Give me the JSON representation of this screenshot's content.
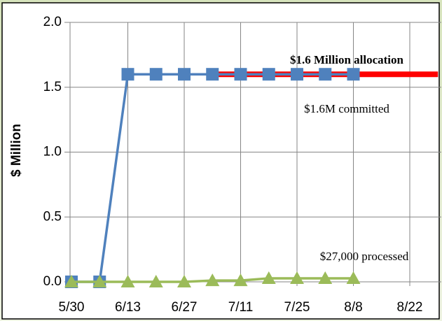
{
  "chart_data": {
    "type": "line",
    "y_label": "$ Million",
    "categories": [
      "5/30",
      null,
      "6/13",
      null,
      "6/27",
      null,
      "7/11",
      null,
      "7/25",
      null,
      "8/8",
      null,
      "8/22",
      null
    ],
    "series": [
      {
        "name": "$1.6 Million allocation",
        "color": "#ff0000",
        "marker": "none",
        "values": [
          null,
          null,
          null,
          null,
          null,
          1.6,
          1.6,
          1.6,
          1.6,
          1.6,
          1.6,
          1.6,
          1.6,
          1.6
        ]
      },
      {
        "name": "$1.6M committed",
        "color": "#4f81bd",
        "marker": "square",
        "values": [
          0,
          0,
          1.6,
          1.6,
          1.6,
          1.6,
          1.6,
          1.6,
          1.6,
          1.6,
          1.6,
          null,
          null,
          null
        ]
      },
      {
        "name": "$27,000 processed",
        "color": "#9bbb59",
        "marker": "triangle",
        "values": [
          0,
          0,
          0,
          0,
          0,
          0.01,
          0.01,
          0.027,
          0.027,
          0.027,
          0.027,
          null,
          null,
          null
        ]
      }
    ],
    "ylim": [
      0,
      2
    ],
    "yticks": [
      {
        "value": 0,
        "label": "0.0"
      },
      {
        "value": 0.5,
        "label": "0.5"
      },
      {
        "value": 1,
        "label": "1.0"
      },
      {
        "value": 1.5,
        "label": "1.5"
      },
      {
        "value": 2,
        "label": "2.0"
      }
    ],
    "grid": true
  }
}
